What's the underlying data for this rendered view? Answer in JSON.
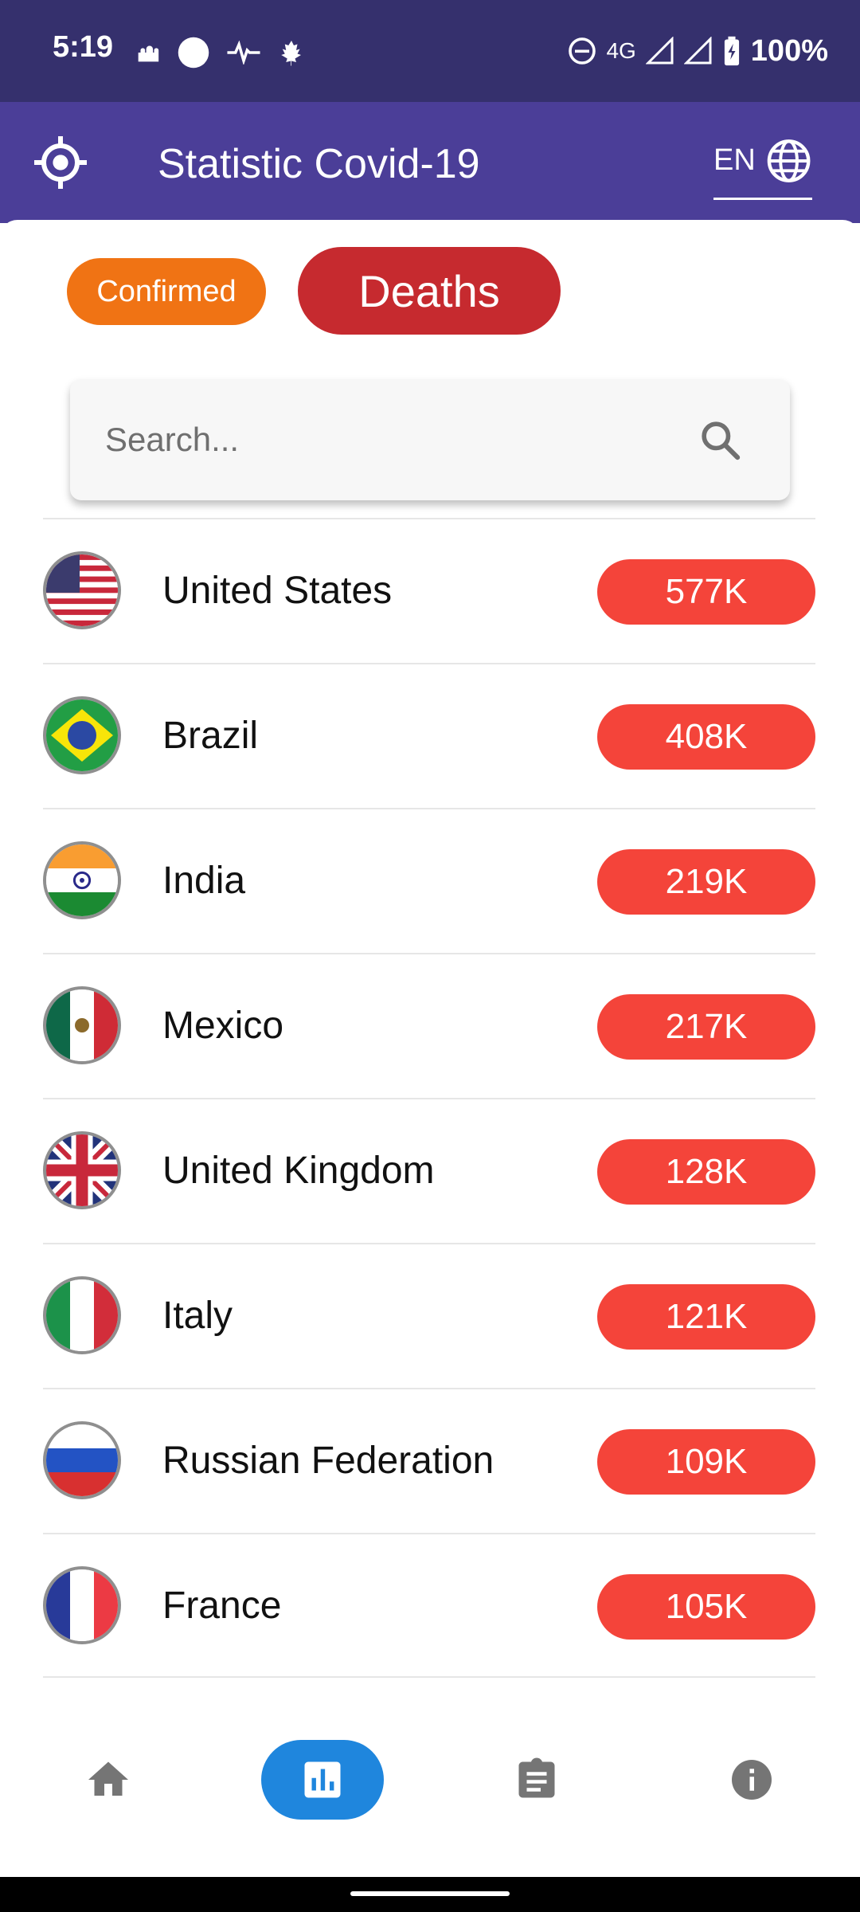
{
  "status_bar": {
    "time": "5:19",
    "network": "4G",
    "battery": "100%"
  },
  "app_bar": {
    "title": "Statistic Covid-19",
    "language": "EN"
  },
  "filters": {
    "confirmed_label": "Confirmed",
    "deaths_label": "Deaths",
    "active": "Deaths"
  },
  "search": {
    "placeholder": "Search..."
  },
  "countries": [
    {
      "name": "United States",
      "value": "577K",
      "flag": "us-flag"
    },
    {
      "name": "Brazil",
      "value": "408K",
      "flag": "brazil-flag"
    },
    {
      "name": "India",
      "value": "219K",
      "flag": "india-flag"
    },
    {
      "name": "Mexico",
      "value": "217K",
      "flag": "mexico-flag"
    },
    {
      "name": "United Kingdom",
      "value": "128K",
      "flag": "uk-flag"
    },
    {
      "name": "Italy",
      "value": "121K",
      "flag": "italy-flag"
    },
    {
      "name": "Russian Federation",
      "value": "109K",
      "flag": "russia-flag"
    },
    {
      "name": "France",
      "value": "105K",
      "flag": "france-flag"
    }
  ],
  "bottom_nav": {
    "items": [
      "home-icon",
      "bar-chart-icon",
      "clipboard-icon",
      "info-icon"
    ],
    "active": "bar-chart-icon"
  },
  "colors": {
    "status_bar": "#35306d",
    "app_bar": "#4b3e98",
    "confirmed_chip": "#f07314",
    "deaths_chip": "#c62a2f",
    "value_badge": "#f4443a",
    "nav_active": "#1f86dd"
  }
}
